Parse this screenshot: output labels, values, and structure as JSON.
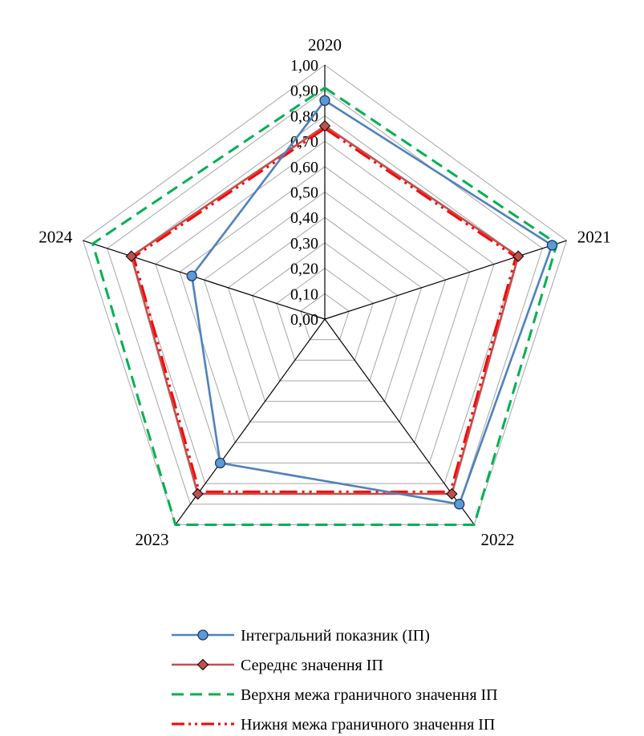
{
  "chart_data": {
    "type": "radar",
    "categories": [
      "2020",
      "2021",
      "2022",
      "2023",
      "2024"
    ],
    "radial_axis": {
      "min": 0,
      "max": 1,
      "step": 0.1,
      "tick_labels": [
        "0,00",
        "0,10",
        "0,20",
        "0,30",
        "0,40",
        "0,50",
        "0,60",
        "0,70",
        "0,80",
        "0,90",
        "1,00"
      ]
    },
    "series": [
      {
        "name": "Інтегральний показник (ІП)",
        "values": [
          0.86,
          0.94,
          0.9,
          0.7,
          0.55
        ],
        "color": "#4f81bd",
        "marker": "circle",
        "marker_fill": "#5b9bd5",
        "line_style": "solid"
      },
      {
        "name": "Середнє значення ІП",
        "values": [
          0.76,
          0.8,
          0.85,
          0.85,
          0.8
        ],
        "color": "#c0504d",
        "marker": "diamond",
        "marker_fill": "#c0504d",
        "line_style": "solid"
      },
      {
        "name": "Верхня межа граничного значення ІП",
        "values": [
          0.91,
          0.96,
          1.0,
          1.0,
          0.96
        ],
        "color": "#00b050",
        "marker": "none",
        "line_style": "dash"
      },
      {
        "name": "Нижня межа граничного значення ІП",
        "values": [
          0.75,
          0.79,
          0.84,
          0.84,
          0.79
        ],
        "color": "#ff0000",
        "marker": "none",
        "line_style": "dash-dot-dot"
      }
    ],
    "grid": true,
    "legend_position": "bottom"
  }
}
